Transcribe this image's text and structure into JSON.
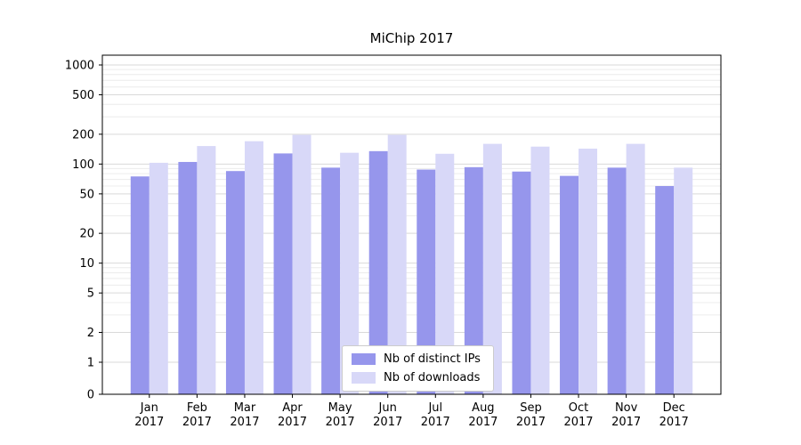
{
  "chart_data": {
    "type": "bar",
    "title": "MiChip 2017",
    "year": "2017",
    "categories": [
      "Jan",
      "Feb",
      "Mar",
      "Apr",
      "May",
      "Jun",
      "Jul",
      "Aug",
      "Sep",
      "Oct",
      "Nov",
      "Dec"
    ],
    "series": [
      {
        "name": "Nb of distinct IPs",
        "color": "#9696ec",
        "values": [
          75,
          105,
          85,
          128,
          92,
          135,
          88,
          93,
          84,
          76,
          92,
          60
        ]
      },
      {
        "name": "Nb of downloads",
        "color": "#d8d8f8",
        "values": [
          103,
          152,
          170,
          197,
          130,
          197,
          127,
          160,
          150,
          143,
          160,
          92
        ]
      }
    ],
    "xlabel": "",
    "ylabel": "",
    "yscale": "symlog",
    "yticks": [
      0,
      1,
      2,
      5,
      10,
      20,
      50,
      100,
      200,
      500,
      1000
    ],
    "ylim": [
      0,
      1260
    ],
    "grid": true,
    "legend_position": "lower center",
    "colors": {
      "major_grid": "#d9d9d9",
      "minor_grid": "#ececec",
      "axis": "#000000",
      "background": "#ffffff"
    }
  }
}
